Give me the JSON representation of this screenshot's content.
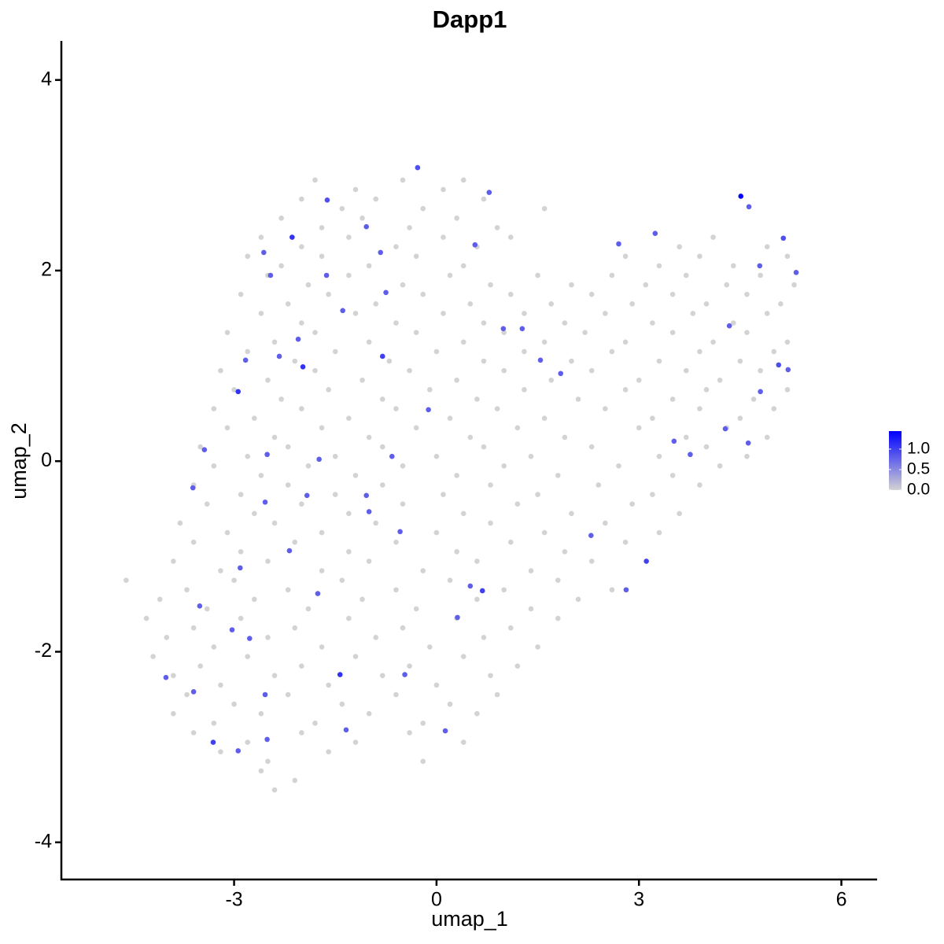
{
  "chart_data": {
    "type": "scatter",
    "title": "Dapp1",
    "x_label": "umap_1",
    "y_label": "umap_2",
    "xlim": [
      -5.56,
      6.53
    ],
    "ylim": [
      -4.39,
      4.41
    ],
    "xticks": [
      -3,
      0,
      3,
      6
    ],
    "yticks": [
      -4,
      -2,
      0,
      2,
      4
    ],
    "color_low": "#d3d3d3",
    "color_high": "#0000ff",
    "color_lim": [
      0,
      1.44
    ],
    "color_ticks": [
      {
        "value": 0,
        "label": "0.0"
      },
      {
        "value": 0.5,
        "label": "0.5"
      },
      {
        "value": 1,
        "label": "1.0"
      }
    ],
    "x": [
      -1.8,
      -1.2,
      -0.5,
      0.1,
      0.4,
      -2.0,
      -1.4,
      -0.9,
      -0.2,
      0.7,
      1.6,
      -2.3,
      -1.7,
      -1.1,
      -0.4,
      0.3,
      0.9,
      -2.6,
      -2.0,
      -1.3,
      -0.6,
      0.1,
      0.6,
      1.1,
      3.6,
      4.1,
      4.9,
      -2.8,
      -2.3,
      -1.7,
      -1.0,
      -0.3,
      0.4,
      2.8,
      3.3,
      3.9,
      4.4,
      5.2,
      -2.5,
      -1.9,
      -1.3,
      -0.5,
      0.2,
      0.8,
      1.5,
      2.0,
      2.6,
      3.1,
      3.7,
      4.3,
      4.8,
      5.3,
      -2.9,
      -2.2,
      -1.6,
      -0.9,
      -0.2,
      0.5,
      1.1,
      1.7,
      2.3,
      2.9,
      3.5,
      4.0,
      4.6,
      5.1,
      -2.6,
      -2.0,
      -1.2,
      -0.6,
      0.1,
      0.7,
      1.3,
      1.9,
      2.5,
      3.2,
      3.8,
      4.4,
      4.9,
      -3.1,
      -2.4,
      -1.8,
      -1.0,
      -0.3,
      0.4,
      1.0,
      1.6,
      2.2,
      2.8,
      3.5,
      4.1,
      4.6,
      5.2,
      -2.8,
      -2.1,
      -1.5,
      -0.7,
      0.0,
      0.7,
      1.3,
      2.0,
      2.6,
      3.3,
      3.9,
      4.5,
      5.0,
      -3.2,
      -2.5,
      -1.8,
      -1.1,
      -0.4,
      0.3,
      1.0,
      1.7,
      2.3,
      3.0,
      3.7,
      4.2,
      4.8,
      -3.0,
      -2.3,
      -1.6,
      -0.8,
      -0.1,
      0.6,
      1.3,
      2.1,
      2.8,
      3.5,
      4.0,
      4.7,
      5.2,
      -3.3,
      -2.7,
      -2.0,
      -1.3,
      -0.6,
      0.2,
      0.9,
      1.6,
      2.5,
      3.2,
      3.9,
      4.5,
      5.0,
      -3.1,
      -2.4,
      -1.7,
      -1.0,
      -0.3,
      0.5,
      1.2,
      1.9,
      3.0,
      3.7,
      4.3,
      4.9,
      -3.5,
      -2.8,
      -2.2,
      -1.5,
      -0.8,
      0.0,
      0.7,
      1.4,
      2.3,
      3.3,
      4.0,
      4.6,
      -3.3,
      -2.6,
      -1.9,
      -1.2,
      -0.5,
      0.3,
      1.0,
      1.8,
      2.7,
      3.5,
      4.2,
      -3.6,
      -2.9,
      -2.2,
      -1.5,
      -0.8,
      0.1,
      0.8,
      1.5,
      2.4,
      3.2,
      3.9,
      -3.4,
      -2.7,
      -2.0,
      -1.3,
      -0.5,
      0.4,
      1.2,
      2.0,
      2.9,
      3.6,
      -3.8,
      -3.1,
      -2.4,
      -1.7,
      -0.9,
      0.0,
      0.8,
      1.6,
      2.5,
      3.3,
      -3.6,
      -2.9,
      -2.1,
      -1.3,
      -0.6,
      0.3,
      1.1,
      1.9,
      2.8,
      -3.9,
      -3.2,
      -2.5,
      -1.7,
      -1.0,
      -0.2,
      0.6,
      1.4,
      2.3,
      -4.6,
      -3.7,
      -3.0,
      -2.2,
      -1.4,
      -0.6,
      0.2,
      1.0,
      1.8,
      2.6,
      -4.1,
      -3.4,
      -2.7,
      -1.9,
      -1.1,
      -0.3,
      0.6,
      1.4,
      2.1,
      -4.3,
      -3.6,
      -2.9,
      -2.1,
      -1.3,
      -0.5,
      0.3,
      1.1,
      1.8,
      -4.0,
      -3.3,
      -2.5,
      -1.7,
      -0.9,
      -0.1,
      0.7,
      1.5,
      -4.2,
      -3.5,
      -2.8,
      -2.0,
      -1.2,
      -0.4,
      0.4,
      1.2,
      -3.9,
      -3.2,
      -2.4,
      -1.6,
      -0.8,
      0.0,
      0.8,
      -3.7,
      -3.0,
      -2.2,
      -1.4,
      -0.6,
      0.2,
      0.9,
      -3.9,
      -3.3,
      -2.6,
      -1.8,
      -1.0,
      -0.2,
      0.6,
      -3.6,
      -2.8,
      -2.0,
      -1.2,
      -0.4,
      0.4,
      -3.2,
      -2.5,
      -1.6,
      -0.2,
      -2.6,
      -2.1,
      -2.4,
      -2.14,
      -2.94,
      -1.98,
      -0.8,
      -1.43,
      -3.31,
      0.68,
      3.11,
      -0.28,
      -1.62,
      -3.61,
      -4.01,
      -2.94,
      -2.51,
      -1.34,
      0.13,
      -0.47,
      0.31,
      2.29,
      2.81,
      3.52,
      4.28,
      5.07,
      5.21,
      5.33,
      5.14,
      4.63,
      4.79,
      4.34,
      3.24,
      2.7,
      1.84,
      1.27,
      1.54,
      -0.12,
      -0.66,
      -1.04,
      -0.54,
      -1.74,
      -1.92,
      -2.54,
      -2.51,
      -3.44,
      -2.83,
      -2.33,
      -2.56,
      -2.46,
      -1.63,
      -1.04,
      -0.83,
      -0.75,
      -1.39,
      -2.05,
      -2.91,
      -3.03,
      -3.51,
      -2.77,
      -2.18,
      -1.76,
      -1.0,
      0.5,
      0.57,
      0.78,
      0.99,
      3.76,
      4.8,
      4.62,
      -2.54,
      -3.6,
      4.51
    ],
    "values": [
      2.95,
      2.85,
      2.95,
      2.85,
      2.95,
      2.75,
      2.65,
      2.75,
      2.65,
      2.75,
      2.65,
      2.55,
      2.45,
      2.55,
      2.45,
      2.55,
      2.45,
      2.35,
      2.25,
      2.35,
      2.25,
      2.35,
      2.25,
      2.35,
      2.25,
      2.35,
      2.25,
      2.15,
      2.05,
      2.15,
      2.05,
      2.15,
      2.05,
      2.15,
      2.05,
      2.15,
      2.05,
      2.15,
      1.95,
      1.85,
      1.95,
      1.85,
      1.95,
      1.85,
      1.95,
      1.85,
      1.95,
      1.85,
      1.95,
      1.85,
      1.95,
      1.85,
      1.75,
      1.65,
      1.75,
      1.65,
      1.75,
      1.65,
      1.75,
      1.65,
      1.75,
      1.65,
      1.75,
      1.65,
      1.75,
      1.65,
      1.55,
      1.45,
      1.55,
      1.45,
      1.55,
      1.45,
      1.55,
      1.45,
      1.55,
      1.45,
      1.55,
      1.45,
      1.55,
      1.35,
      1.25,
      1.35,
      1.25,
      1.35,
      1.25,
      1.35,
      1.25,
      1.35,
      1.25,
      1.35,
      1.25,
      1.35,
      1.25,
      1.15,
      1.05,
      1.15,
      1.05,
      1.15,
      1.05,
      1.15,
      1.05,
      1.15,
      1.05,
      1.15,
      1.05,
      1.15,
      0.95,
      0.85,
      0.95,
      0.85,
      0.95,
      0.85,
      0.95,
      0.85,
      0.95,
      0.85,
      0.95,
      0.85,
      0.95,
      0.75,
      0.65,
      0.75,
      0.65,
      0.75,
      0.65,
      0.75,
      0.65,
      0.75,
      0.65,
      0.75,
      0.65,
      0.75,
      0.55,
      0.45,
      0.55,
      0.45,
      0.55,
      0.45,
      0.55,
      0.45,
      0.55,
      0.45,
      0.55,
      0.45,
      0.55,
      0.35,
      0.25,
      0.35,
      0.25,
      0.35,
      0.25,
      0.35,
      0.25,
      0.35,
      0.25,
      0.35,
      0.25,
      0.15,
      0.05,
      0.15,
      0.05,
      0.15,
      0.05,
      0.15,
      0.05,
      0.15,
      0.05,
      0.15,
      0.05,
      -0.05,
      -0.15,
      -0.05,
      -0.15,
      -0.05,
      -0.15,
      -0.05,
      -0.15,
      -0.05,
      -0.15,
      -0.05,
      -0.25,
      -0.35,
      -0.25,
      -0.35,
      -0.25,
      -0.35,
      -0.25,
      -0.35,
      -0.25,
      -0.35,
      -0.25,
      -0.45,
      -0.55,
      -0.45,
      -0.55,
      -0.45,
      -0.55,
      -0.45,
      -0.55,
      -0.45,
      -0.55,
      -0.65,
      -0.75,
      -0.65,
      -0.75,
      -0.65,
      -0.75,
      -0.65,
      -0.75,
      -0.65,
      -0.75,
      -0.85,
      -0.95,
      -0.85,
      -0.95,
      -0.85,
      -0.95,
      -0.85,
      -0.95,
      -0.85,
      -1.05,
      -1.15,
      -1.05,
      -1.15,
      -1.05,
      -1.15,
      -1.05,
      -1.15,
      -1.05,
      -1.25,
      -1.35,
      -1.25,
      -1.35,
      -1.25,
      -1.35,
      -1.25,
      -1.35,
      -1.25,
      -1.35,
      -1.45,
      -1.55,
      -1.45,
      -1.55,
      -1.45,
      -1.55,
      -1.45,
      -1.55,
      -1.45,
      -1.65,
      -1.75,
      -1.65,
      -1.75,
      -1.65,
      -1.75,
      -1.65,
      -1.75,
      -1.65,
      -1.85,
      -1.95,
      -1.85,
      -1.95,
      -1.85,
      -1.95,
      -1.85,
      -1.95,
      -2.05,
      -2.15,
      -2.05,
      -2.15,
      -2.05,
      -2.15,
      -2.05,
      -2.15,
      -2.25,
      -2.35,
      -2.25,
      -2.35,
      -2.25,
      -2.35,
      -2.25,
      -2.45,
      -2.55,
      -2.45,
      -2.55,
      -2.45,
      -2.55,
      -2.45,
      -2.65,
      -2.75,
      -2.65,
      -2.75,
      -2.65,
      -2.75,
      -2.65,
      -2.85,
      -2.95,
      -2.85,
      -2.95,
      -2.85,
      -2.95,
      -3.05,
      -3.15,
      -3.05,
      -3.15,
      -3.25,
      -3.35,
      -3.45,
      2.35,
      0.73,
      0.99,
      1.1,
      -2.24,
      -2.95,
      -1.36,
      -1.05,
      3.08,
      2.74,
      -0.28,
      -2.27,
      -3.04,
      -2.92,
      -2.82,
      -2.83,
      -2.24,
      -1.64,
      -0.78,
      -1.35,
      0.21,
      0.34,
      1.01,
      0.96,
      1.98,
      2.34,
      2.67,
      2.05,
      1.42,
      2.39,
      2.28,
      0.92,
      1.39,
      1.06,
      0.54,
      0.05,
      -0.36,
      -0.74,
      0.02,
      -0.36,
      -0.43,
      0.07,
      0.12,
      1.06,
      1.1,
      2.19,
      1.95,
      1.95,
      2.46,
      2.19,
      1.77,
      1.58,
      1.28,
      -1.12,
      -1.77,
      -1.52,
      -1.86,
      -0.94,
      -1.39,
      -0.53,
      -1.31,
      2.27,
      2.82,
      1.39,
      0.07,
      0.73,
      0.19,
      -2.45,
      -2.42,
      2.78
    ],
    "expression": [
      0,
      0,
      0,
      0,
      0,
      0,
      0,
      0,
      0,
      0,
      0,
      0,
      0,
      0,
      0,
      0,
      0,
      0,
      0,
      0,
      0,
      0,
      0,
      0,
      0,
      0,
      0,
      0,
      0,
      0,
      0,
      0,
      0,
      0,
      0,
      0,
      0,
      0,
      0,
      0,
      0,
      0,
      0,
      0,
      0,
      0,
      0,
      0,
      0,
      0,
      0,
      0,
      0,
      0,
      0,
      0,
      0,
      0,
      0,
      0,
      0,
      0,
      0,
      0,
      0,
      0,
      0,
      0,
      0,
      0,
      0,
      0,
      0,
      0,
      0,
      0,
      0,
      0,
      0,
      0,
      0,
      0,
      0,
      0,
      0,
      0,
      0,
      0,
      0,
      0,
      0,
      0,
      0,
      0,
      0,
      0,
      0,
      0,
      0,
      0,
      0,
      0,
      0,
      0,
      0,
      0,
      0,
      0,
      0,
      0,
      0,
      0,
      0,
      0,
      0,
      0,
      0,
      0,
      0,
      0,
      0,
      0,
      0,
      0,
      0,
      0,
      0,
      0,
      0,
      0,
      0,
      0,
      0,
      0,
      0,
      0,
      0,
      0,
      0,
      0,
      0,
      0,
      0,
      0,
      0,
      0,
      0,
      0,
      0,
      0,
      0,
      0,
      0,
      0,
      0,
      0,
      0,
      0,
      0,
      0,
      0,
      0,
      0,
      0,
      0,
      0,
      0,
      0,
      0,
      0,
      0,
      0,
      0,
      0,
      0,
      0,
      0,
      0,
      0,
      0,
      0,
      0,
      0,
      0,
      0,
      0,
      0,
      0,
      0,
      0,
      0,
      0,
      0,
      0,
      0,
      0,
      0,
      0,
      0,
      0,
      0,
      0,
      0,
      0,
      0,
      0,
      0,
      0,
      0,
      0,
      0,
      0,
      0,
      0,
      0,
      0,
      0,
      0,
      0,
      0,
      0,
      0,
      0,
      0,
      0,
      0,
      0,
      0,
      0,
      0,
      0,
      0,
      0,
      0,
      0,
      0,
      0,
      0,
      0,
      0,
      0,
      0,
      0,
      0,
      0,
      0,
      0,
      0,
      0,
      0,
      0,
      0,
      0,
      0,
      0,
      0,
      0,
      0,
      0,
      0,
      0,
      0,
      0,
      0,
      0,
      0,
      0,
      0,
      0,
      0,
      0,
      0,
      0,
      0,
      0,
      0,
      0,
      0,
      0,
      0,
      0,
      0,
      0,
      0,
      0,
      0,
      0,
      0,
      0,
      0,
      0,
      0,
      0,
      0,
      0,
      0,
      0,
      0,
      0,
      0,
      0,
      0,
      0,
      0,
      0,
      0,
      0,
      1.1,
      1.1,
      1.1,
      1.0,
      1.1,
      1.0,
      1.0,
      1.0,
      0.9,
      0.9,
      0.8,
      0.8,
      0.8,
      0.8,
      0.8,
      0.8,
      0.8,
      0.8,
      0.8,
      0.8,
      0.8,
      0.8,
      0.9,
      0.8,
      0.8,
      0.9,
      0.8,
      0.8,
      0.8,
      0.8,
      0.8,
      0.8,
      0.8,
      0.8,
      0.8,
      0.8,
      0.8,
      0.8,
      0.8,
      0.8,
      0.8,
      0.8,
      0.8,
      0.8,
      0.8,
      0.8,
      0.8,
      0.8,
      0.8,
      0.8,
      0.8,
      0.8,
      0.8,
      0.8,
      0.8,
      0.8,
      0.8,
      0.8,
      0.8,
      0.8,
      0.8,
      0.8,
      0.8,
      0.8,
      0.8,
      0.8,
      0.8,
      0.8,
      0.8,
      1.4
    ]
  }
}
